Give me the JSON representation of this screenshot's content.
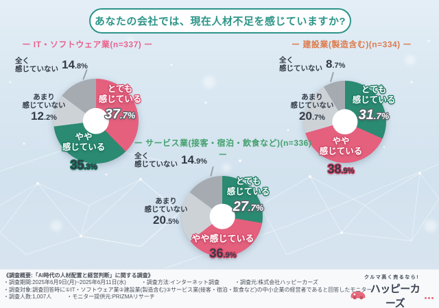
{
  "title": "あなたの会社では、現在人材不足を感じていますか?",
  "accent_colors": {
    "title_teal": "#2c9488",
    "pink": "#e4607d",
    "green": "#2b8a72",
    "light_gray": "#cdd2d7",
    "gray": "#a6abb2",
    "dark_text": "#333a46",
    "logo_pink": "#e7697c"
  },
  "chart_data": [
    {
      "type": "pie",
      "title": "ー IT・ソフトウェア業(n=337) ー",
      "industry": "IT・ソフトウェア業",
      "n": 337,
      "title_color": "#e9638e",
      "segments": [
        {
          "label": "とても感じている",
          "label_lines": [
            "とても",
            "感じている"
          ],
          "value": 37.7,
          "color": "#e4607d"
        },
        {
          "label": "やや感じている",
          "label_lines": [
            "やや",
            "感じている"
          ],
          "value": 35.3,
          "color": "#2b8a72"
        },
        {
          "label": "あまり感じていない",
          "label_lines": [
            "あまり",
            "感じていない"
          ],
          "value": 12.2,
          "color": "#cdd2d7"
        },
        {
          "label": "全く感じていない",
          "label_lines": [
            "全く",
            "感じていない"
          ],
          "value": 14.8,
          "color": "#a6abb2"
        }
      ]
    },
    {
      "type": "pie",
      "title": "ー 建設業(製造含む)(n=334) ー",
      "industry": "建設業(製造含む)",
      "n": 334,
      "title_color": "#dd7b4c",
      "segments": [
        {
          "label": "とても感じている",
          "label_lines": [
            "とても",
            "感じている"
          ],
          "value": 31.7,
          "color": "#2b8a72"
        },
        {
          "label": "やや感じている",
          "label_lines": [
            "やや",
            "感じている"
          ],
          "value": 38.9,
          "color": "#e4607d"
        },
        {
          "label": "あまり感じていない",
          "label_lines": [
            "あまり",
            "感じていない"
          ],
          "value": 20.7,
          "color": "#cdd2d7"
        },
        {
          "label": "全く感じていない",
          "label_lines": [
            "全く",
            "感じていない"
          ],
          "value": 8.7,
          "color": "#a6abb2"
        }
      ]
    },
    {
      "type": "pie",
      "title": "ー サービス業(接客・宿泊・飲食など)(n=336) ー",
      "industry": "サービス業(接客・宿泊・飲食など)",
      "n": 336,
      "title_color": "#43a06d",
      "segments": [
        {
          "label": "とても感じている",
          "label_lines": [
            "とても",
            "感じている"
          ],
          "value": 27.7,
          "color": "#2b8a72"
        },
        {
          "label": "やや感じている",
          "label_lines": [
            "やや感じている"
          ],
          "value": 36.9,
          "color": "#e4607d"
        },
        {
          "label": "あまり感じていない",
          "label_lines": [
            "あまり",
            "感じていない"
          ],
          "value": 20.5,
          "color": "#cdd2d7"
        },
        {
          "label": "全く感じていない",
          "label_lines": [
            "全く",
            "感じていない"
          ],
          "value": 14.9,
          "color": "#a6abb2"
        }
      ]
    }
  ],
  "footer": {
    "lines": [
      {
        "segments": [
          "《調査概要:「AI時代の人材配置と経営判断」に関する調査》"
        ]
      },
      {
        "segments": [
          "・調査期間:2025年6月9日(月)~2025年6月11日(水)",
          "・調査方法:インターネット調査",
          "・調査元:株式会社ハッピーカーズ"
        ]
      },
      {
        "segments": [
          "・調査対象:調査回答時に①IT・ソフトウェア業②建設業(製造含む)③サービス業(接客・宿泊・飲食など)の中小企業の経営者であると回答したモニター"
        ]
      },
      {
        "segments": [
          "・調査人数:1,007人",
          "・モニター提供元:PRIZMAリサーチ"
        ]
      }
    ]
  },
  "logo": {
    "tagline": "クルマ高く売るなら!",
    "brand": "ハッピーカーズ"
  }
}
